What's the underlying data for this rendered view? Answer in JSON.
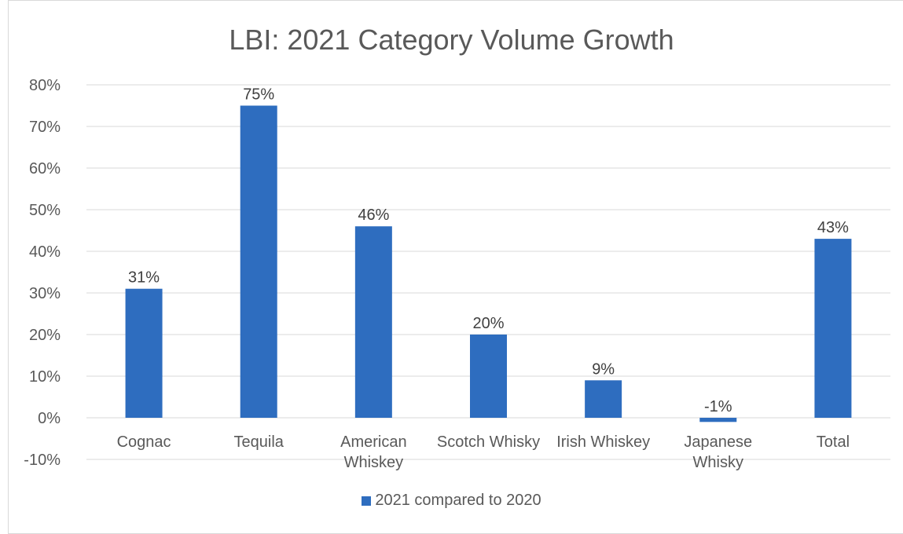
{
  "chart_data": {
    "type": "bar",
    "title": "LBI: 2021 Category Volume Growth",
    "categories": [
      [
        "Cognac"
      ],
      [
        "Tequila"
      ],
      [
        "American",
        "Whiskey"
      ],
      [
        "Scotch Whisky"
      ],
      [
        "Irish Whiskey"
      ],
      [
        "Japanese",
        "Whisky"
      ],
      [
        "Total"
      ]
    ],
    "series": [
      {
        "name": "2021 compared to 2020",
        "values": [
          31,
          75,
          46,
          20,
          9,
          -1,
          43
        ],
        "color": "#2e6dbf"
      }
    ],
    "data_labels": [
      "31%",
      "75%",
      "46%",
      "20%",
      "9%",
      "-1%",
      "43%"
    ],
    "y_ticks": [
      "-10%",
      "0%",
      "10%",
      "20%",
      "30%",
      "40%",
      "50%",
      "60%",
      "70%",
      "80%"
    ],
    "y_tick_values": [
      -10,
      0,
      10,
      20,
      30,
      40,
      50,
      60,
      70,
      80
    ],
    "ylim": [
      -10,
      80
    ],
    "grid": true,
    "legend_position": "bottom"
  }
}
